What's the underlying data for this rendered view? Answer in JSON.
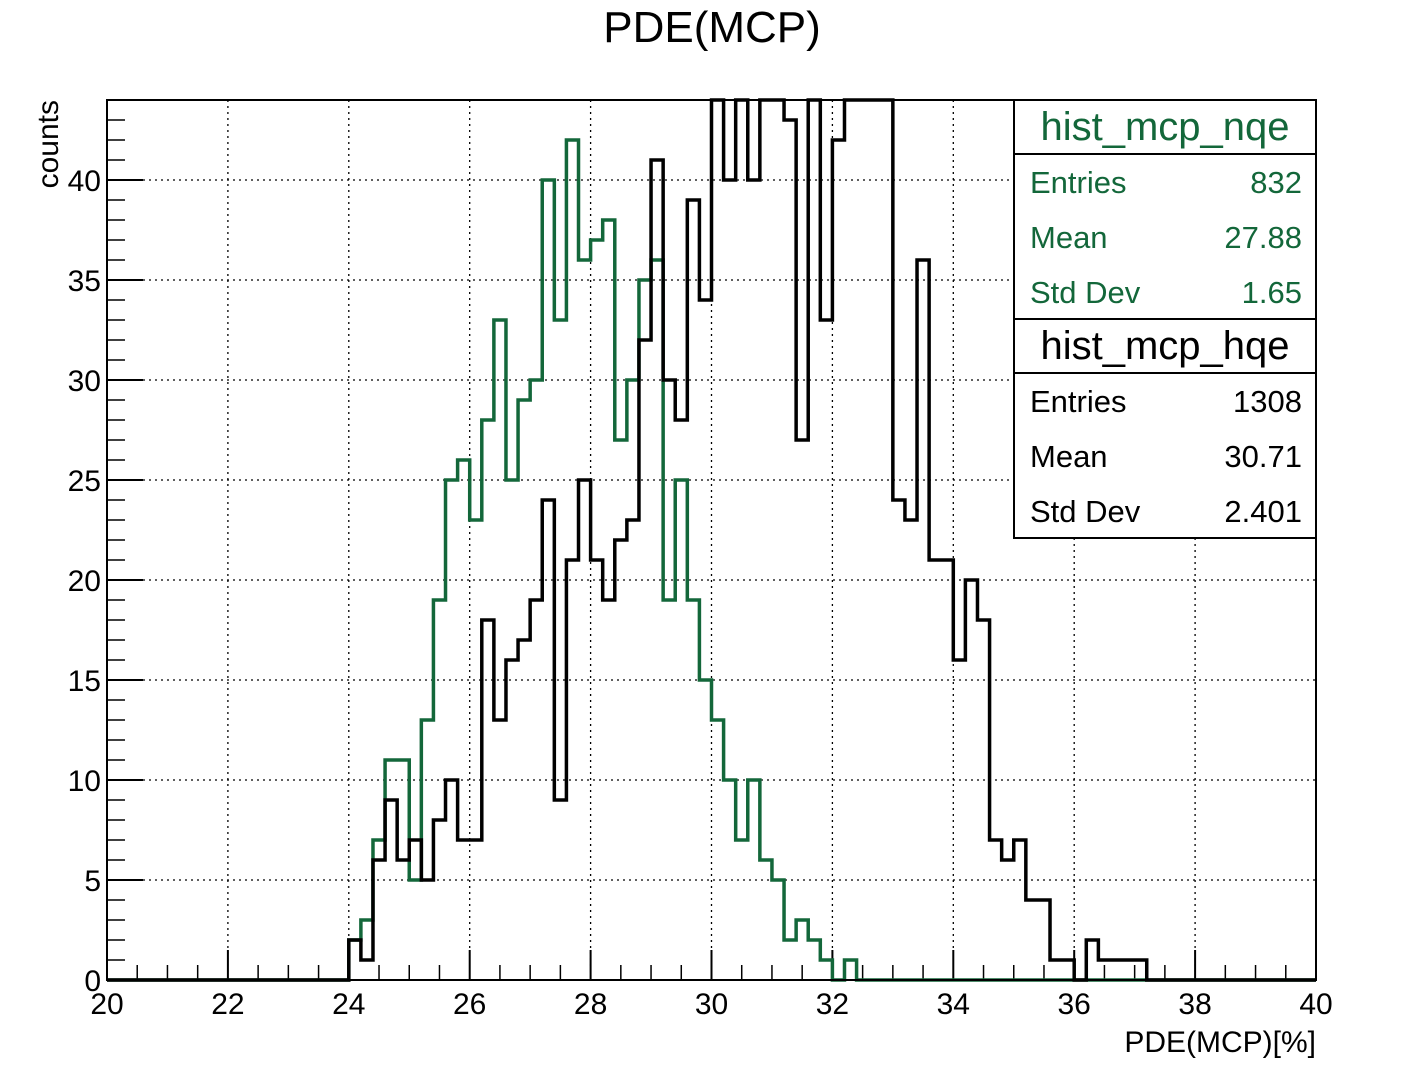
{
  "chart_data": {
    "type": "histogram",
    "title": "PDE(MCP)",
    "xlabel": "PDE(MCP)[%]",
    "ylabel": "counts",
    "xlim": [
      20,
      40
    ],
    "ylim": [
      0,
      44
    ],
    "bin_width": 0.2,
    "bin_start": 24.0,
    "grid": true,
    "x_ticks": [
      "20",
      "22",
      "24",
      "26",
      "28",
      "30",
      "32",
      "34",
      "36",
      "38",
      "40"
    ],
    "y_ticks": [
      "0",
      "5",
      "10",
      "15",
      "20",
      "25",
      "30",
      "35",
      "40"
    ],
    "colors": {
      "hist_mcp_nqe": "#13673a",
      "hist_mcp_hqe": "#000000"
    },
    "series": [
      {
        "name": "hist_mcp_nqe",
        "values": [
          2,
          3,
          7,
          11,
          11,
          5,
          13,
          19,
          25,
          26,
          23,
          28,
          33,
          25,
          29,
          30,
          40,
          33,
          42,
          36,
          37,
          38,
          27,
          30,
          35,
          36,
          19,
          25,
          19,
          15,
          13,
          10,
          7,
          10,
          6,
          5,
          2,
          3,
          2,
          1,
          0,
          1
        ]
      },
      {
        "name": "hist_mcp_hqe",
        "values": [
          2,
          1,
          6,
          9,
          6,
          7,
          5,
          8,
          10,
          7,
          7,
          18,
          13,
          16,
          17,
          19,
          24,
          9,
          21,
          25,
          21,
          19,
          22,
          23,
          32,
          41,
          30,
          28,
          39,
          34,
          44,
          40,
          44,
          40,
          44,
          44,
          43,
          27,
          44,
          33,
          42,
          44,
          44,
          44,
          44,
          24,
          23,
          36,
          21,
          21,
          16,
          20,
          18,
          7,
          6,
          7,
          4,
          4,
          1,
          1,
          0,
          2,
          1,
          1,
          1,
          1
        ]
      }
    ]
  },
  "stats": [
    {
      "name": "hist_mcp_nqe",
      "rows": [
        {
          "label": "Entries",
          "value": "832"
        },
        {
          "label": "Mean",
          "value": "27.88"
        },
        {
          "label": "Std Dev",
          "value": "1.65"
        }
      ]
    },
    {
      "name": "hist_mcp_hqe",
      "rows": [
        {
          "label": "Entries",
          "value": "1308"
        },
        {
          "label": "Mean",
          "value": "30.71"
        },
        {
          "label": "Std Dev",
          "value": "2.401"
        }
      ]
    }
  ]
}
